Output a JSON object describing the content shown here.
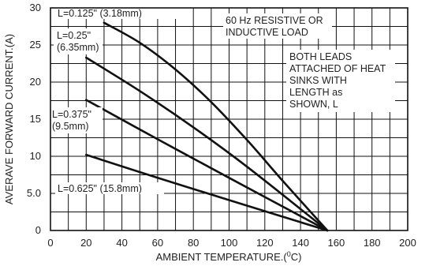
{
  "chart_data": {
    "type": "line",
    "title": "",
    "xlabel": "AMBIENT TEMPERATURE.(",
    "xlabel_sup": "0",
    "xlabel_end": "C)",
    "ylabel": "AVERAVE FORWARD CURRENT.(A)",
    "xlim": [
      0,
      200
    ],
    "ylim": [
      0,
      30
    ],
    "x_ticks": [
      "0",
      "20",
      "40",
      "60",
      "80",
      "100",
      "120",
      "140",
      "160",
      "180",
      "200"
    ],
    "y_ticks": [
      "0",
      "5.0",
      "10",
      "15",
      "20",
      "25",
      "30"
    ],
    "grid": true,
    "annotations": {
      "note1_line1": "60 Hz RESISTIVE OR",
      "note1_line2": "INDUCTIVE LOAD",
      "note2_line1": "BOTH LEADS",
      "note2_line2": "ATTACHED OF HEAT",
      "note2_line3": "SINKS WITH",
      "note2_line4": "LENGTH as",
      "note2_line5": "SHOWN, L"
    },
    "series": [
      {
        "name": "L=0.125\" (3.18mm)",
        "label_line1": "L=0.125\" (3.18mm)",
        "label_line2": "",
        "x": [
          30,
          50,
          70,
          90,
          110,
          130,
          155
        ],
        "y": [
          28,
          25.3,
          21.7,
          17.3,
          12.2,
          6.7,
          0
        ]
      },
      {
        "name": "L=0.25\" (6.35mm)",
        "label_line1": "L=0.25\"",
        "label_line2": "(6.35mm)",
        "x": [
          20,
          50,
          80,
          110,
          155
        ],
        "y": [
          23.3,
          18.8,
          13.9,
          8.6,
          0
        ]
      },
      {
        "name": "L=0.375\" (9.5mm)",
        "label_line1": "L=0.375\"",
        "label_line2": "(9.5mm)",
        "x": [
          20,
          60,
          100,
          155
        ],
        "y": [
          17.6,
          12.3,
          7.1,
          0
        ]
      },
      {
        "name": "L=0.625\" (15.8mm)",
        "label_line1": "L=0.625\" (15.8mm)",
        "label_line2": "",
        "x": [
          20,
          60,
          100,
          155
        ],
        "y": [
          10.2,
          7.1,
          4.1,
          0
        ]
      }
    ]
  }
}
